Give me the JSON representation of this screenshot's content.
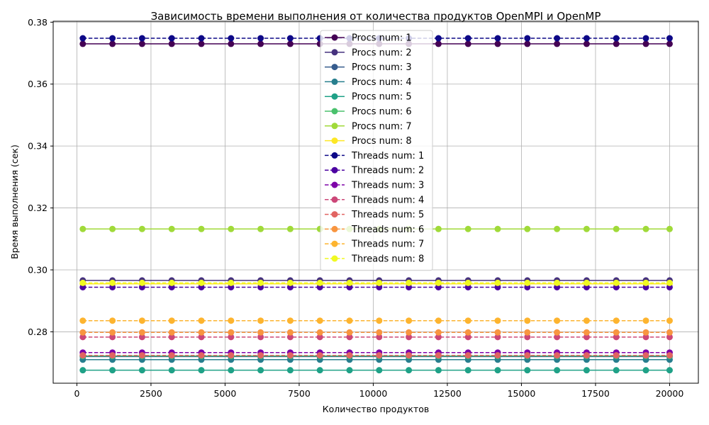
{
  "chart_data": {
    "type": "line",
    "title": "Зависимость времени выполнения от количества продуктов OpenMPI и OpenMP",
    "xlabel": "Количество продуктов",
    "ylabel": "Время выполнения (сек)",
    "xlim": [
      -800,
      20970
    ],
    "ylim": [
      0.2634,
      0.3803
    ],
    "xticks": [
      0,
      2500,
      5000,
      7500,
      10000,
      12500,
      15000,
      17500,
      20000
    ],
    "xtick_labels": [
      "0",
      "2500",
      "5000",
      "7500",
      "10000",
      "12500",
      "15000",
      "17500",
      "20000"
    ],
    "yticks": [
      0.28,
      0.3,
      0.32,
      0.34,
      0.36,
      0.38
    ],
    "ytick_labels": [
      "0.28",
      "0.30",
      "0.32",
      "0.34",
      "0.36",
      "0.38"
    ],
    "grid": true,
    "legend_position": "top-center",
    "x": [
      200,
      1200,
      2200,
      3200,
      4200,
      5200,
      6200,
      7200,
      8200,
      9200,
      10200,
      11200,
      12200,
      13200,
      14200,
      15200,
      16200,
      17200,
      18200,
      19200,
      20000
    ],
    "series": [
      {
        "name": "Procs num: 1",
        "constant": 0.373,
        "color": "#440154",
        "dash": "solid"
      },
      {
        "name": "Procs num: 2",
        "constant": 0.2966,
        "color": "#46327e",
        "dash": "solid"
      },
      {
        "name": "Procs num: 3",
        "constant": 0.272,
        "color": "#365c8d",
        "dash": "solid"
      },
      {
        "name": "Procs num: 4",
        "constant": 0.271,
        "color": "#277f8e",
        "dash": "solid"
      },
      {
        "name": "Procs num: 5",
        "constant": 0.2676,
        "color": "#1fa187",
        "dash": "solid"
      },
      {
        "name": "Procs num: 6",
        "constant": 0.2722,
        "color": "#4ac16d",
        "dash": "solid"
      },
      {
        "name": "Procs num: 7",
        "constant": 0.3132,
        "color": "#a0da39",
        "dash": "solid"
      },
      {
        "name": "Procs num: 8",
        "constant": 0.2955,
        "color": "#fde725",
        "dash": "solid"
      },
      {
        "name": "Threads num: 1",
        "constant": 0.3748,
        "color": "#0d0887",
        "dash": "dashed"
      },
      {
        "name": "Threads num: 2",
        "constant": 0.2944,
        "color": "#4c02a1",
        "dash": "dashed"
      },
      {
        "name": "Threads num: 3",
        "constant": 0.2733,
        "color": "#7e03a8",
        "dash": "dashed"
      },
      {
        "name": "Threads num: 4",
        "constant": 0.2783,
        "color": "#cc4778",
        "dash": "dashed"
      },
      {
        "name": "Threads num: 5",
        "constant": 0.2724,
        "color": "#e16462",
        "dash": "dashed"
      },
      {
        "name": "Threads num: 6",
        "constant": 0.2798,
        "color": "#f89540",
        "dash": "dashed"
      },
      {
        "name": "Threads num: 7",
        "constant": 0.2836,
        "color": "#fdb42f",
        "dash": "dashed"
      },
      {
        "name": "Threads num: 8",
        "constant": 0.2958,
        "color": "#f0f921",
        "dash": "dashed"
      }
    ]
  }
}
